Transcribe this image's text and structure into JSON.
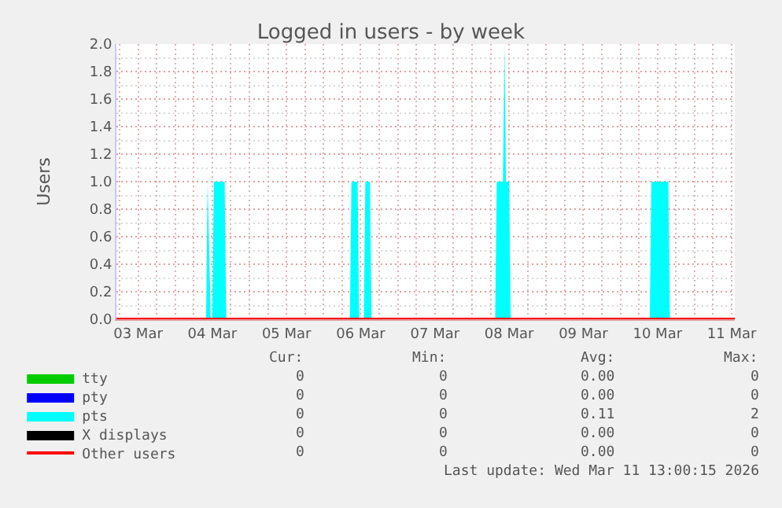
{
  "chart_data": {
    "type": "area",
    "title": "Logged in users - by week",
    "ylabel": "Users",
    "grid": true,
    "legend": "bottom",
    "xlim": [
      "2026-03-03T05:00",
      "2026-03-11T13:00"
    ],
    "xticks": [
      {
        "value": "2026-03-03T12:00",
        "label": "03 Mar"
      },
      {
        "value": "2026-03-04T12:00",
        "label": "04 Mar"
      },
      {
        "value": "2026-03-05T12:00",
        "label": "05 Mar"
      },
      {
        "value": "2026-03-06T12:00",
        "label": "06 Mar"
      },
      {
        "value": "2026-03-07T12:00",
        "label": "07 Mar"
      },
      {
        "value": "2026-03-08T12:00",
        "label": "08 Mar"
      },
      {
        "value": "2026-03-09T12:00",
        "label": "09 Mar"
      },
      {
        "value": "2026-03-10T12:00",
        "label": "10 Mar"
      },
      {
        "value": "2026-03-11T12:00",
        "label": "11 Mar"
      }
    ],
    "ylim": [
      0,
      2
    ],
    "yticks": [
      {
        "value": 0,
        "label": "0.0"
      },
      {
        "value": 0.2,
        "label": "0.2"
      },
      {
        "value": 0.4,
        "label": "0.4"
      },
      {
        "value": 0.6,
        "label": "0.6"
      },
      {
        "value": 0.8,
        "label": "0.8"
      },
      {
        "value": 1,
        "label": "1.0"
      },
      {
        "value": 1.2,
        "label": "1.2"
      },
      {
        "value": 1.4,
        "label": "1.4"
      },
      {
        "value": 1.6,
        "label": "1.6"
      },
      {
        "value": 1.8,
        "label": "1.8"
      },
      {
        "value": 2,
        "label": "2.0"
      }
    ],
    "series": [
      {
        "name": "tty",
        "color": "#00cc00",
        "values": [
          null
        ]
      },
      {
        "name": "pty",
        "color": "#0000ff",
        "values": [
          null
        ]
      },
      {
        "name": "pts",
        "color": "#00ffff",
        "x": [
          "2026-03-03T05:00",
          "2026-03-04T10:00",
          "2026-03-04T10:30",
          "2026-03-04T11:30",
          "2026-03-04T12:00",
          "2026-03-04T12:30",
          "2026-03-04T16:00",
          "2026-03-04T16:30",
          "2026-03-06T08:30",
          "2026-03-06T09:00",
          "2026-03-06T11:00",
          "2026-03-06T11:30",
          "2026-03-06T13:00",
          "2026-03-06T13:30",
          "2026-03-06T15:00",
          "2026-03-06T15:30",
          "2026-03-08T07:30",
          "2026-03-08T08:00",
          "2026-03-08T10:00",
          "2026-03-08T10:30",
          "2026-03-08T11:00",
          "2026-03-08T12:00",
          "2026-03-08T12:30",
          "2026-03-10T09:30",
          "2026-03-10T10:00",
          "2026-03-10T15:30",
          "2026-03-10T16:00",
          "2026-03-11T13:00"
        ],
        "values": [
          0,
          0,
          1,
          0,
          0,
          1,
          1,
          0,
          0,
          1,
          1,
          0,
          0,
          1,
          1,
          0,
          0,
          1,
          1,
          2,
          1,
          1,
          0,
          0,
          1,
          1,
          0,
          0
        ]
      },
      {
        "name": "X displays",
        "color": "#000000",
        "values": [
          null
        ]
      },
      {
        "name": "Other users",
        "type": "line",
        "color": "#ff0000",
        "x": [
          "2026-03-03T05:00",
          "2026-03-11T13:00"
        ],
        "values": [
          0,
          0
        ]
      }
    ],
    "annotations": [
      "Cur:",
      "Min:",
      "Avg:",
      "Max:",
      "0",
      "0",
      "0.00",
      "0",
      "0",
      "0",
      "0.00",
      "0",
      "0",
      "0",
      "0.11",
      "2",
      "0",
      "0",
      "0.00",
      "0",
      "0",
      "0",
      "0.00",
      "0",
      "Last update: Wed Mar 11 13:00:15 2026"
    ]
  }
}
